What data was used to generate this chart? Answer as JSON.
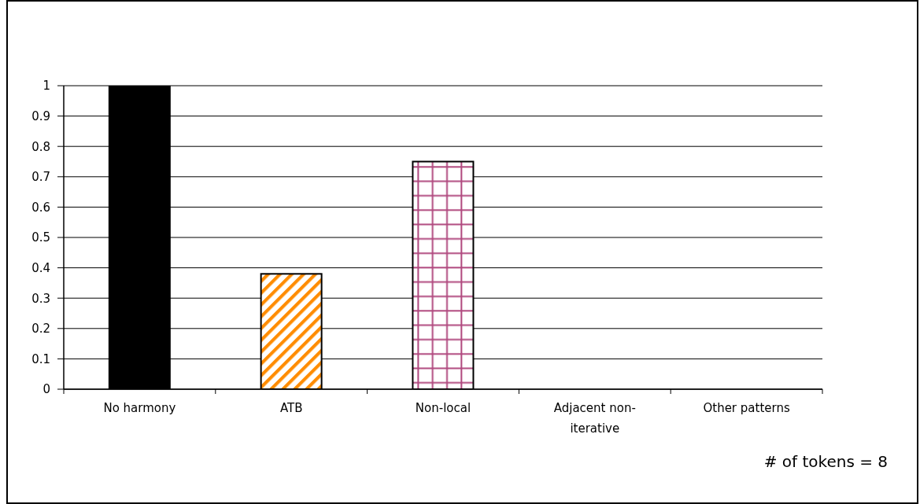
{
  "chart_data": {
    "type": "bar",
    "categories": [
      "No harmony",
      "ATB",
      "Non-local",
      "Adjacent non-iterative",
      "Other patterns"
    ],
    "values": [
      1,
      0.38,
      0.75,
      0,
      0
    ],
    "colors": [
      "#000000",
      "#ff8c00",
      "#b0487e",
      null,
      null
    ],
    "ylim": [
      0,
      1
    ],
    "yticks": [
      0,
      0.1,
      0.2,
      0.3,
      0.4,
      0.5,
      0.6,
      0.7,
      0.8,
      0.9,
      1
    ],
    "grid": "y",
    "annotations": [
      "# of tokens = 8"
    ]
  }
}
